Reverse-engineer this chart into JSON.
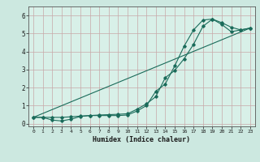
{
  "xlabel": "Humidex (Indice chaleur)",
  "bg_color": "#cce8e0",
  "plot_bg_color": "#d8f0e8",
  "line_color": "#1a6b5a",
  "grid_color": "#c8a8a8",
  "xlim": [
    -0.5,
    23.5
  ],
  "ylim": [
    -0.15,
    6.5
  ],
  "xticks": [
    0,
    1,
    2,
    3,
    4,
    5,
    6,
    7,
    8,
    9,
    10,
    11,
    12,
    13,
    14,
    15,
    16,
    17,
    18,
    19,
    20,
    21,
    22,
    23
  ],
  "yticks": [
    0,
    1,
    2,
    3,
    4,
    5,
    6
  ],
  "line1_x": [
    0,
    1,
    2,
    3,
    4,
    5,
    6,
    7,
    8,
    9,
    10,
    11,
    12,
    13,
    14,
    15,
    16,
    17,
    18,
    19,
    20,
    21,
    22,
    23
  ],
  "line1_y": [
    0.35,
    0.35,
    0.35,
    0.35,
    0.38,
    0.42,
    0.45,
    0.48,
    0.5,
    0.52,
    0.55,
    0.8,
    1.1,
    1.5,
    2.55,
    2.95,
    3.6,
    4.4,
    5.4,
    5.8,
    5.6,
    5.35,
    5.2,
    5.3
  ],
  "line2_x": [
    0,
    1,
    2,
    3,
    4,
    5,
    6,
    7,
    8,
    9,
    10,
    11,
    12,
    13,
    14,
    15,
    16,
    17,
    18,
    19,
    20,
    21,
    22,
    23
  ],
  "line2_y": [
    0.35,
    0.35,
    0.2,
    0.15,
    0.25,
    0.4,
    0.45,
    0.45,
    0.45,
    0.45,
    0.48,
    0.7,
    1.0,
    1.8,
    2.2,
    3.2,
    4.3,
    5.2,
    5.75,
    5.8,
    5.5,
    5.1,
    5.2,
    5.3
  ],
  "line3_x": [
    0,
    23
  ],
  "line3_y": [
    0.35,
    5.3
  ]
}
